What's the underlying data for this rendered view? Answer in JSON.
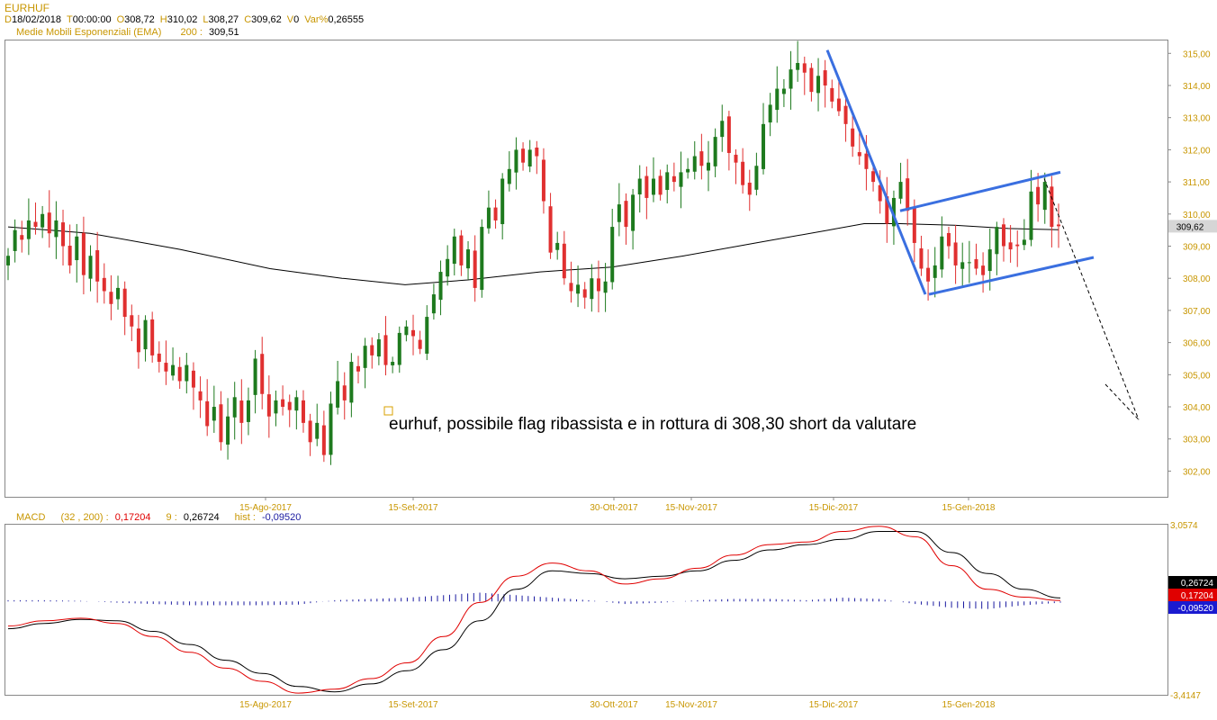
{
  "header": {
    "symbol": "EURHUF",
    "ohlc": [
      {
        "label": "D",
        "value": "18/02/2018"
      },
      {
        "label": "T",
        "value": "00:00:00"
      },
      {
        "label": "O",
        "value": "308,72"
      },
      {
        "label": "H",
        "value": "310,02"
      },
      {
        "label": "L",
        "value": "308,27"
      },
      {
        "label": "C",
        "value": "309,62"
      },
      {
        "label": "V",
        "value": "0"
      },
      {
        "label": "Var%",
        "value": "0,26555"
      }
    ],
    "ema_label": "Medie Mobili Esponenziali (EMA)",
    "ema_period": "200 :",
    "ema_value": "309,51"
  },
  "macd_header": {
    "label": "MACD",
    "params": "(32 , 200) :",
    "macd_value": "0,17204",
    "signal_period": "9 :",
    "signal_value": "0,26724",
    "hist_label": "hist :",
    "hist_value": "-0,09520"
  },
  "annotation": "eurhuf, possibile flag ribassista e in rottura di 308,30 short da valutare",
  "colors": {
    "up": "#1e7a1e",
    "down": "#e03030",
    "ema": "#000000",
    "trendline": "#3a6fe0",
    "macd": "#e00000",
    "signal": "#000000",
    "hist": "#1a1aa0",
    "label": "#c89600"
  },
  "chart_data": [
    {
      "type": "candlestick",
      "title": "EURHUF",
      "y_ticks": [
        "302,00",
        "303,00",
        "304,00",
        "305,00",
        "306,00",
        "307,00",
        "308,00",
        "309,00",
        "310,00",
        "311,00",
        "312,00",
        "313,00",
        "314,00",
        "315,00"
      ],
      "ylim": [
        301.2,
        315.4
      ],
      "x_ticks": [
        "15-Ago-2017",
        "15-Set-2017",
        "30-Ott-2017",
        "15-Nov-2017",
        "15-Dic-2017",
        "15-Gen-2018"
      ],
      "last_price_label": "309,62",
      "series": [
        {
          "name": "EURHUF",
          "close": [
            308.7,
            309.5,
            309.2,
            309.8,
            309.6,
            310.0,
            309.4,
            309.8,
            309.0,
            308.4,
            309.3,
            308.1,
            308.7,
            307.9,
            307.6,
            307.2,
            307.7,
            306.8,
            306.5,
            305.7,
            306.7,
            305.6,
            305.4,
            305.1,
            305.3,
            304.8,
            305.3,
            304.6,
            304.2,
            303.4,
            304.0,
            302.9,
            303.7,
            304.3,
            303.5,
            304.2,
            305.5,
            304.4,
            303.7,
            304.2,
            304.0,
            303.9,
            304.3,
            303.5,
            302.9,
            303.5,
            302.5,
            304.1,
            304.8,
            304.2,
            305.4,
            305.1,
            305.9,
            305.6,
            306.1,
            305.3,
            305.4,
            306.3,
            306.5,
            306.2,
            305.8,
            306.8,
            307.5,
            308.2,
            308.6,
            309.3,
            308.4,
            308.9,
            307.7,
            309.6,
            310.2,
            309.8,
            311.1,
            311.4,
            312.0,
            311.6,
            312.0,
            311.8,
            310.4,
            308.8,
            309.1,
            308.0,
            307.6,
            307.8,
            307.4,
            308.0,
            307.6,
            307.9,
            309.6,
            310.3,
            309.6,
            310.6,
            311.1,
            310.5,
            311.1,
            310.6,
            311.3,
            311.0,
            311.3,
            311.4,
            311.8,
            311.5,
            311.6,
            312.4,
            312.9,
            311.9,
            311.6,
            310.9,
            310.6,
            311.5,
            312.8,
            313.4,
            313.9,
            313.9,
            314.5,
            314.7,
            314.4,
            313.8,
            314.3,
            314.0,
            313.5,
            313.2,
            312.8,
            312.1,
            311.8,
            311.4,
            311.0,
            310.4,
            309.7,
            310.5,
            311.0,
            310.1,
            309.1,
            308.3,
            307.9,
            308.4,
            309.3,
            309.0,
            308.4,
            308.5,
            308.5,
            308.3,
            308.1,
            308.9,
            309.6,
            309.0,
            308.9,
            309.0,
            309.2,
            310.7,
            310.3,
            311.0,
            309.6,
            309.62
          ]
        }
      ]
    },
    {
      "type": "line",
      "title": "MACD",
      "y_ticks": [
        "3,0574",
        "-3,4147"
      ],
      "ylim": [
        -3.4147,
        3.0574
      ],
      "x_ticks": [
        "15-Ago-2017",
        "15-Set-2017",
        "30-Ott-2017",
        "15-Nov-2017",
        "15-Dic-2017",
        "15-Gen-2018"
      ],
      "value_labels": [
        "0,26724",
        "0,17204",
        "-0,09520"
      ],
      "series": [
        {
          "name": "MACD",
          "values": [
            -0.8,
            -0.6,
            -0.5,
            -0.7,
            -1.2,
            -1.8,
            -2.4,
            -2.9,
            -3.35,
            -3.2,
            -2.8,
            -2.2,
            -1.2,
            0.1,
            1.1,
            1.6,
            1.3,
            0.8,
            1.0,
            1.4,
            1.9,
            2.3,
            2.4,
            2.8,
            3.0,
            2.6,
            1.5,
            0.6,
            0.3,
            0.17
          ]
        },
        {
          "name": "Signal",
          "values": [
            -0.9,
            -0.7,
            -0.55,
            -0.6,
            -1.0,
            -1.5,
            -2.1,
            -2.6,
            -3.1,
            -3.3,
            -3.0,
            -2.5,
            -1.7,
            -0.6,
            0.6,
            1.3,
            1.2,
            1.0,
            1.1,
            1.3,
            1.7,
            2.1,
            2.3,
            2.5,
            2.8,
            2.8,
            2.0,
            1.2,
            0.6,
            0.27
          ]
        },
        {
          "name": "hist",
          "values": [
            0.1,
            0.1,
            0.05,
            -0.1,
            -0.2,
            -0.3,
            -0.3,
            -0.3,
            -0.25,
            0.1,
            0.2,
            0.3,
            0.5,
            0.7,
            0.5,
            0.3,
            0.1,
            -0.2,
            -0.1,
            0.1,
            0.2,
            0.2,
            0.1,
            0.3,
            0.2,
            -0.2,
            -0.5,
            -0.6,
            -0.3,
            -0.095
          ]
        }
      ]
    }
  ]
}
